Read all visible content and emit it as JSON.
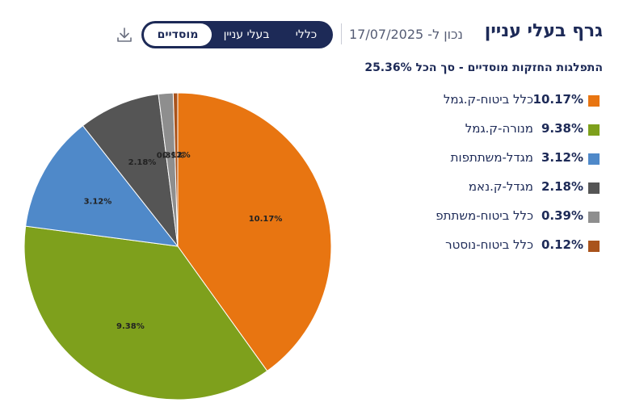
{
  "header": {
    "title": "גרף בעלי עניין",
    "date_text": "נכון ל- 17/07/2025",
    "toggle": {
      "opt1": "כללי",
      "opt2": "בעלי עניין",
      "opt3": "מוסדיים"
    }
  },
  "chart_data": {
    "type": "pie",
    "title": "התפלגות החזקות מוסדיים - סך הכל 25.36%",
    "legend_position": "right",
    "slices": [
      {
        "label": "כלל ביטוח-ק.גמל",
        "value": 10.17,
        "value_text": "10.17%",
        "color": "#e87511"
      },
      {
        "label": "מנורה-ק.גמל",
        "value": 9.38,
        "value_text": "9.38%",
        "color": "#7ea01c"
      },
      {
        "label": "מגדל-משתתפות",
        "value": 3.12,
        "value_text": "3.12%",
        "color": "#4f89c9"
      },
      {
        "label": "מגדל-ק.נאמ",
        "value": 2.18,
        "value_text": "2.18%",
        "color": "#555555"
      },
      {
        "label": "כלל ביטוח-משתתפ",
        "value": 0.39,
        "value_text": "0.39%",
        "color": "#8e8e8e"
      },
      {
        "label": "כלל ביטוח-נוסטר",
        "value": 0.12,
        "value_text": "0.12%",
        "color": "#a9531c"
      }
    ]
  },
  "icons": {
    "download": "download-icon"
  }
}
